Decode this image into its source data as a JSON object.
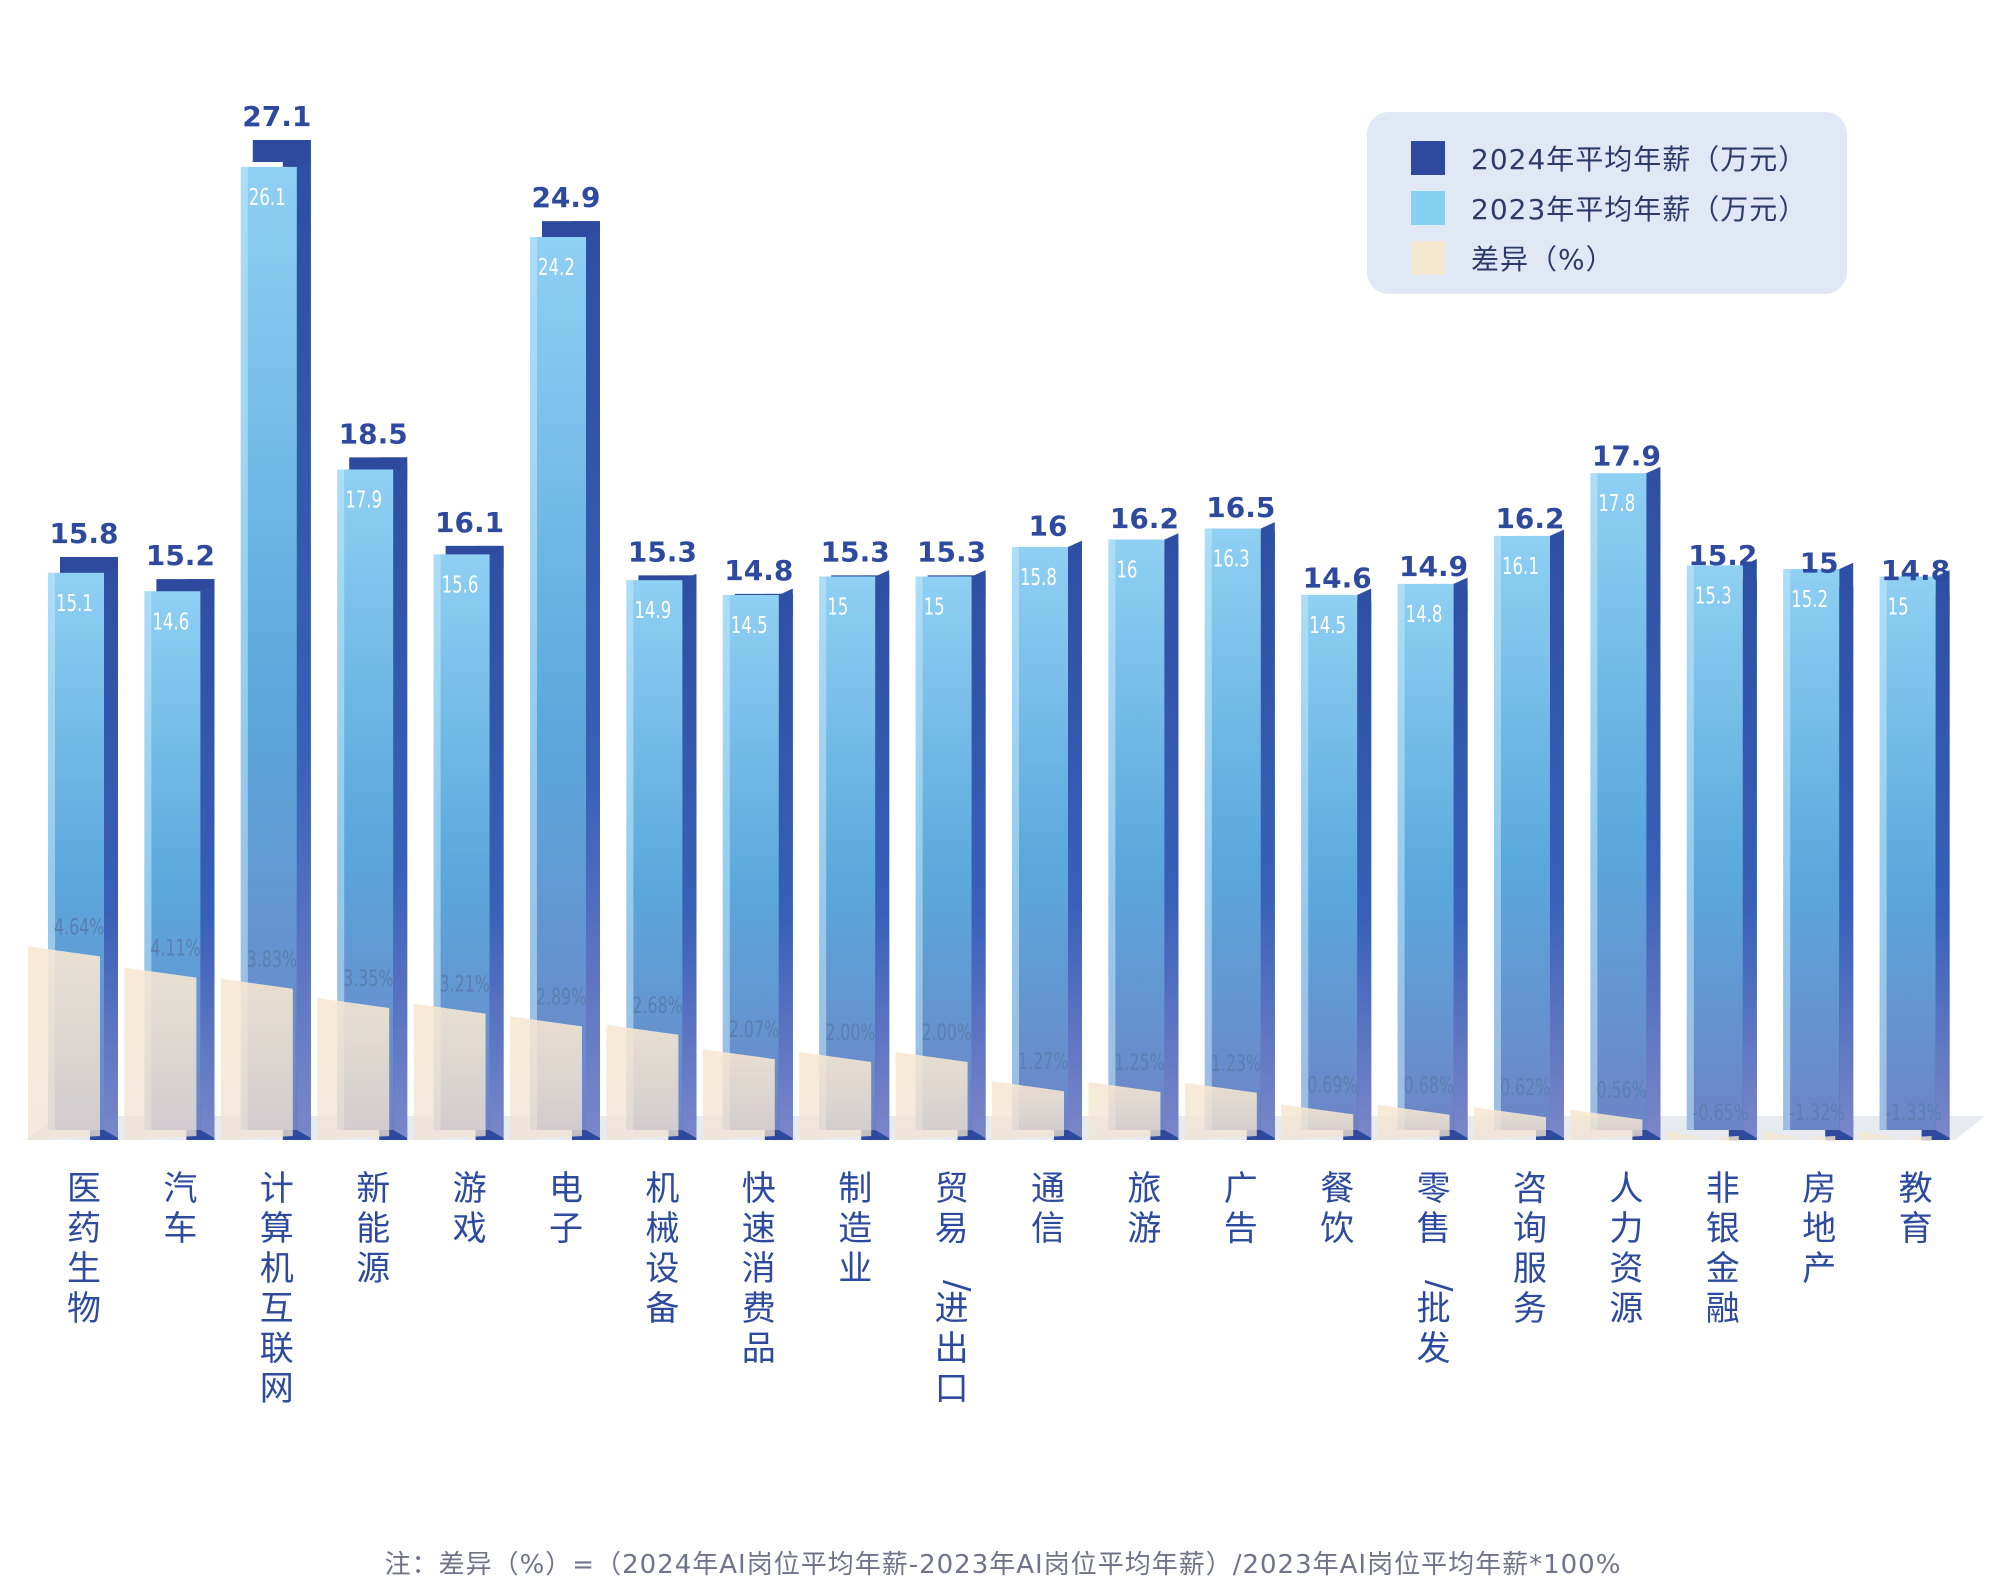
{
  "chart_data": {
    "type": "bar",
    "categories": [
      "医药生物",
      "汽车",
      "计算机互联网",
      "新能源",
      "游戏",
      "电子",
      "机械设备",
      "快速消费品",
      "制造业",
      "贸易/进出口",
      "通信",
      "旅游",
      "广告",
      "餐饮",
      "零售/批发",
      "咨询服务",
      "人力资源",
      "非银金融",
      "房地产",
      "教育"
    ],
    "series": [
      {
        "name": "2024年平均年薪（万元）",
        "color": "#2d4a9e",
        "values": [
          15.8,
          15.2,
          27.1,
          18.5,
          16.1,
          24.9,
          15.3,
          14.8,
          15.3,
          15.3,
          16,
          16.2,
          16.5,
          14.6,
          14.9,
          16.2,
          17.9,
          15.2,
          15,
          14.8
        ],
        "labels": [
          "15.8",
          "15.2",
          "27.1",
          "18.5",
          "16.1",
          "24.9",
          "15.3",
          "14.8",
          "15.3",
          "15.3",
          "16",
          "16.2",
          "16.5",
          "14.6",
          "14.9",
          "16.2",
          "17.9",
          "15.2",
          "15",
          "14.8"
        ]
      },
      {
        "name": "2023年平均年薪（万元）",
        "color": "#86c8ec",
        "values": [
          15.1,
          14.6,
          26.1,
          17.9,
          15.6,
          24.2,
          14.9,
          14.5,
          15,
          15,
          15.8,
          16,
          16.3,
          14.5,
          14.8,
          16.1,
          17.8,
          15.3,
          15.2,
          15
        ],
        "labels": [
          "15.1",
          "14.6",
          "26.1",
          "17.9",
          "15.6",
          "24.2",
          "14.9",
          "14.5",
          "15",
          "15",
          "15.8",
          "16",
          "16.3",
          "14.5",
          "14.8",
          "16.1",
          "17.8",
          "15.3",
          "15.2",
          "15"
        ]
      },
      {
        "name": "差异（%）",
        "color": "#f5e6cf",
        "values": [
          4.64,
          4.11,
          3.83,
          3.35,
          3.21,
          2.89,
          2.68,
          2.07,
          2.0,
          2.0,
          1.27,
          1.25,
          1.23,
          0.69,
          0.68,
          0.62,
          0.56,
          -0.65,
          -1.32,
          -1.33
        ],
        "labels": [
          "4.64%",
          "4.11%",
          "3.83%",
          "3.35%",
          "3.21%",
          "2.89%",
          "2.68%",
          "2.07%",
          "2.00%",
          "2.00%",
          "1.27%",
          "1.25%",
          "1.23%",
          "0.69%",
          "0.68%",
          "0.62%",
          "0.56%",
          "-0.65%",
          "-1.32%",
          "-1.33%"
        ]
      }
    ],
    "legend_position": "top-right",
    "grid": false,
    "note": "注：差异（%）=（2024年AI岗位平均年薪-2023年AI岗位平均年薪）/2023年AI岗位平均年薪*100%"
  }
}
